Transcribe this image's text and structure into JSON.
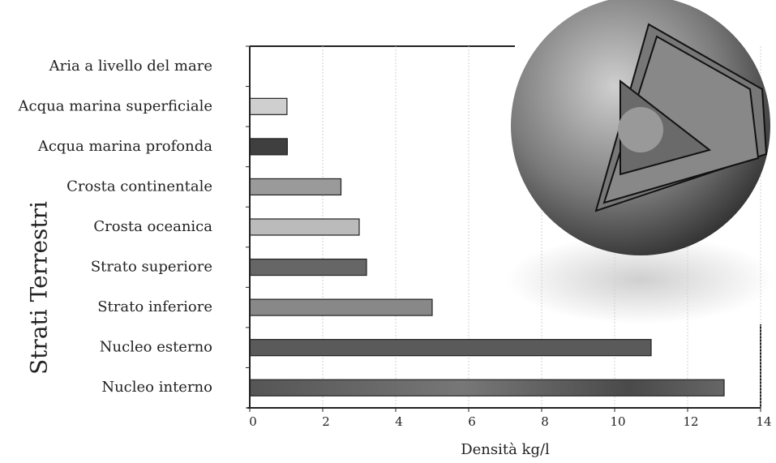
{
  "chart_data": {
    "type": "hbar",
    "xlabel": "Densità kg/l",
    "ylabel": "Strati Terrestri",
    "categories": [
      "Aria a livello del mare",
      "Acqua marina superficiale",
      "Acqua marina profonda",
      "Crosta continentale",
      "Crosta oceanica",
      "Strato superiore",
      "Strato inferiore",
      "Nucleo esterno",
      "Nucleo interno"
    ],
    "values": [
      0,
      1.02,
      1.03,
      2.5,
      3.0,
      3.2,
      5.0,
      11.0,
      13.0
    ],
    "colors": [
      "#999999",
      "#cfcfcf",
      "#3f3f3f",
      "#9a9a9a",
      "#bbbbbb",
      "#666666",
      "#888888",
      "#5a5a5a",
      "#666666"
    ],
    "xlim": [
      0,
      14
    ],
    "xticks": [
      0,
      2,
      4,
      6,
      8,
      10,
      12,
      14
    ],
    "grid": true
  }
}
